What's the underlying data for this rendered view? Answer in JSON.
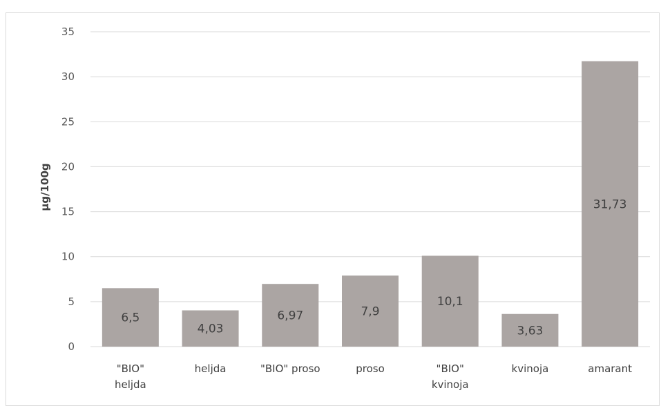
{
  "chart_data": {
    "type": "bar",
    "categories": [
      [
        "\"BIO\"",
        "heljda"
      ],
      [
        "heljda"
      ],
      [
        "\"BIO\" proso"
      ],
      [
        "proso"
      ],
      [
        "\"BIO\"",
        "kvinoja"
      ],
      [
        "kvinoja"
      ],
      [
        "amarant"
      ]
    ],
    "values": [
      6.5,
      4.03,
      6.97,
      7.9,
      10.1,
      3.63,
      31.73
    ],
    "data_labels": [
      "6,5",
      "4,03",
      "6,97",
      "7,9",
      "10,1",
      "3,63",
      "31,73"
    ],
    "yticks": [
      "0",
      "5",
      "10",
      "15",
      "20",
      "25",
      "30",
      "35"
    ],
    "ylim": [
      0,
      35
    ],
    "ylabel": "µg/100g",
    "xlabel": "",
    "grid": true,
    "bar_color": "#aba5a3"
  }
}
